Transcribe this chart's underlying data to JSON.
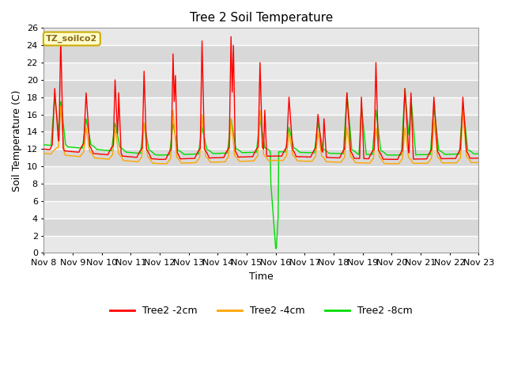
{
  "title": "Tree 2 Soil Temperature",
  "xlabel": "Time",
  "ylabel": "Soil Temperature (C)",
  "ylim": [
    0,
    26
  ],
  "xlim": [
    0,
    360
  ],
  "yticks": [
    0,
    2,
    4,
    6,
    8,
    10,
    12,
    14,
    16,
    18,
    20,
    22,
    24,
    26
  ],
  "xtick_labels": [
    "Nov 8",
    "Nov 9",
    "Nov 10",
    "Nov 11",
    "Nov 12",
    "Nov 13",
    "Nov 14",
    "Nov 15",
    "Nov 16",
    "Nov 17",
    "Nov 18",
    "Nov 19",
    "Nov 20",
    "Nov 21",
    "Nov 22",
    "Nov 23"
  ],
  "xtick_positions": [
    0,
    24,
    48,
    72,
    96,
    120,
    144,
    168,
    192,
    216,
    240,
    264,
    288,
    312,
    336,
    360
  ],
  "annotation_text": "TZ_soilco2",
  "legend_entries": [
    "Tree2 -2cm",
    "Tree2 -4cm",
    "Tree2 -8cm"
  ],
  "legend_colors": [
    "#ff0000",
    "#ffa500",
    "#00dd00"
  ],
  "background_color": "#ffffff",
  "plot_bg_light": "#e8e8e8",
  "plot_bg_dark": "#d0d0d0",
  "grid_color": "#ffffff",
  "title_fontsize": 11,
  "axis_label_fontsize": 9,
  "tick_fontsize": 8
}
